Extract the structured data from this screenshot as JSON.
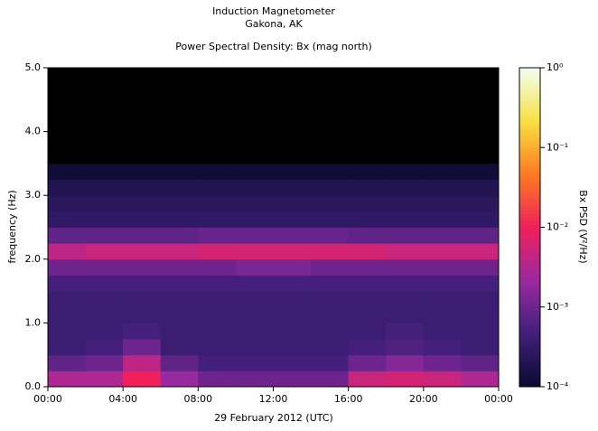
{
  "chart_data": {
    "type": "spectrogram",
    "title": "Induction Magnetometer",
    "subtitle": "Gakona, AK",
    "plot_title": "Power Spectral Density: Bx (mag north)",
    "x_label": "29 February 2012 (UTC)",
    "y_label": "frequency (Hz)",
    "colorbar_label": "Bx PSD (V²/Hz)",
    "xlim": [
      0,
      24
    ],
    "xticks": [
      {
        "value": 0,
        "label": "00:00"
      },
      {
        "value": 4,
        "label": "04:00"
      },
      {
        "value": 8,
        "label": "08:00"
      },
      {
        "value": 12,
        "label": "12:00"
      },
      {
        "value": 16,
        "label": "16:00"
      },
      {
        "value": 20,
        "label": "20:00"
      },
      {
        "value": 24,
        "label": "00:00"
      }
    ],
    "ylim": [
      0,
      5
    ],
    "yticks": [
      {
        "value": 0,
        "label": "0.0"
      },
      {
        "value": 1,
        "label": "1.0"
      },
      {
        "value": 2,
        "label": "2.0"
      },
      {
        "value": 3,
        "label": "3.0"
      },
      {
        "value": 4,
        "label": "4.0"
      },
      {
        "value": 5,
        "label": "5.0"
      }
    ],
    "clim": [
      0.0001,
      1
    ],
    "color_scale": "log",
    "cticks": [
      {
        "value": 0.0001,
        "label": "10⁻⁴"
      },
      {
        "value": 0.001,
        "label": "10⁻³"
      },
      {
        "value": 0.01,
        "label": "10⁻²"
      },
      {
        "value": 0.1,
        "label": "10⁻¹"
      },
      {
        "value": 1,
        "label": "10⁰"
      }
    ],
    "colormap": [
      "#0a0a30",
      "#40207a",
      "#9a2aa0",
      "#f0205a",
      "#ff7a20",
      "#f8e040",
      "#f0fff0"
    ],
    "background": "#000000",
    "xbins": [
      0,
      2,
      4,
      6,
      8,
      10,
      12,
      14,
      16,
      18,
      20,
      22,
      24
    ],
    "ybins": [
      0,
      0.25,
      0.5,
      0.75,
      1,
      1.25,
      1.5,
      1.75,
      2,
      2.25,
      2.5,
      2.75,
      3,
      3.25,
      3.5,
      3.75,
      4,
      4.25,
      4.5,
      4.75,
      5
    ],
    "z": [
      [
        0.003,
        0.003,
        0.01,
        0.002,
        0.001,
        0.001,
        0.001,
        0.001,
        0.005,
        0.006,
        0.005,
        0.003
      ],
      [
        0.0008,
        0.001,
        0.004,
        0.0008,
        0.0005,
        0.0005,
        0.0005,
        0.0005,
        0.001,
        0.0015,
        0.001,
        0.0008
      ],
      [
        0.0004,
        0.0005,
        0.001,
        0.0004,
        0.0004,
        0.0004,
        0.0004,
        0.0004,
        0.0005,
        0.0006,
        0.0005,
        0.0004
      ],
      [
        0.0004,
        0.0004,
        0.0005,
        0.0004,
        0.0004,
        0.0004,
        0.0004,
        0.0004,
        0.0004,
        0.0005,
        0.0004,
        0.0004
      ],
      [
        0.0004,
        0.0004,
        0.0004,
        0.0004,
        0.0004,
        0.0004,
        0.0004,
        0.0004,
        0.0004,
        0.0004,
        0.0004,
        0.0004
      ],
      [
        0.0004,
        0.0004,
        0.0004,
        0.0004,
        0.0004,
        0.0004,
        0.0004,
        0.0004,
        0.0004,
        0.0004,
        0.0004,
        0.0004
      ],
      [
        0.0005,
        0.0005,
        0.0005,
        0.0005,
        0.0005,
        0.0005,
        0.0005,
        0.0005,
        0.0005,
        0.0005,
        0.0005,
        0.0005
      ],
      [
        0.001,
        0.001,
        0.001,
        0.001,
        0.001,
        0.0012,
        0.0012,
        0.001,
        0.001,
        0.001,
        0.001,
        0.001
      ],
      [
        0.004,
        0.005,
        0.005,
        0.005,
        0.006,
        0.006,
        0.006,
        0.006,
        0.006,
        0.005,
        0.005,
        0.005
      ],
      [
        0.0008,
        0.0008,
        0.0008,
        0.0008,
        0.0009,
        0.0009,
        0.0009,
        0.0009,
        0.0008,
        0.0008,
        0.0008,
        0.0008
      ],
      [
        0.0003,
        0.0003,
        0.0003,
        0.0003,
        0.0003,
        0.0003,
        0.0003,
        0.0003,
        0.0003,
        0.0003,
        0.0003,
        0.0003
      ],
      [
        0.00025,
        0.00025,
        0.00025,
        0.00025,
        0.00025,
        0.00025,
        0.00025,
        0.00025,
        0.00025,
        0.00025,
        0.00025,
        0.00025
      ],
      [
        0.0002,
        0.0002,
        0.0002,
        0.0002,
        0.0002,
        0.0002,
        0.0002,
        0.0002,
        0.0002,
        0.0002,
        0.0002,
        0.0002
      ],
      [
        0.00012,
        0.00012,
        0.00012,
        0.00012,
        0.00012,
        0.00012,
        0.00012,
        0.00012,
        0.00012,
        0.00012,
        0.00012,
        0.00012
      ],
      [
        5e-05,
        5e-05,
        5e-05,
        5e-05,
        5e-05,
        5e-05,
        5e-05,
        5e-05,
        5e-05,
        5e-05,
        5e-05,
        5e-05
      ],
      [
        5e-05,
        5e-05,
        5e-05,
        5e-05,
        5e-05,
        5e-05,
        5e-05,
        5e-05,
        5e-05,
        5e-05,
        5e-05,
        5e-05
      ],
      [
        5e-05,
        5e-05,
        5e-05,
        5e-05,
        5e-05,
        5e-05,
        5e-05,
        5e-05,
        5e-05,
        5e-05,
        5e-05,
        5e-05
      ],
      [
        5e-05,
        5e-05,
        5e-05,
        5e-05,
        5e-05,
        5e-05,
        5e-05,
        5e-05,
        5e-05,
        5e-05,
        5e-05,
        5e-05
      ],
      [
        5e-05,
        5e-05,
        5e-05,
        5e-05,
        5e-05,
        5e-05,
        5e-05,
        5e-05,
        5e-05,
        5e-05,
        5e-05,
        5e-05
      ],
      [
        5e-05,
        5e-05,
        5e-05,
        5e-05,
        5e-05,
        5e-05,
        5e-05,
        5e-05,
        5e-05,
        5e-05,
        5e-05,
        5e-05
      ]
    ]
  }
}
